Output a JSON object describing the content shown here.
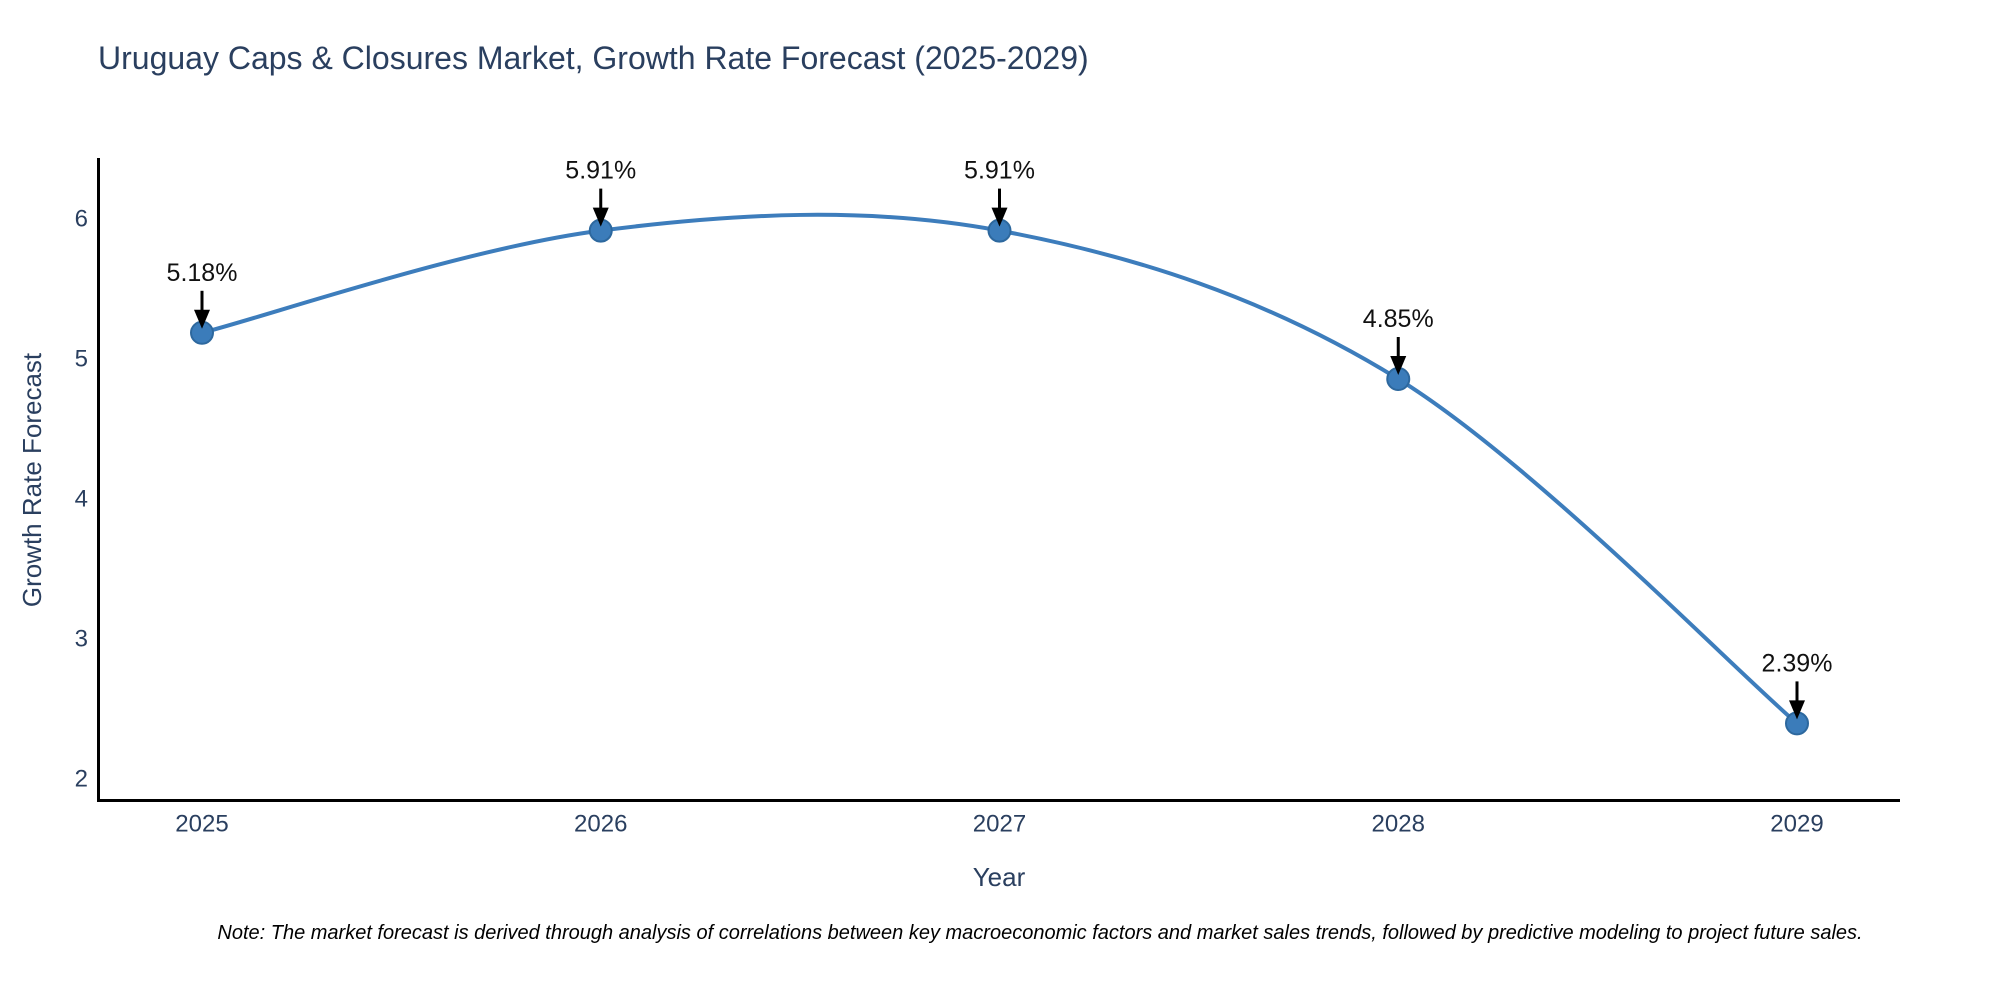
{
  "chart_data": {
    "type": "line",
    "title": "Uruguay Caps & Closures Market, Growth Rate Forecast (2025-2029)",
    "xlabel": "Year",
    "ylabel": "Growth Rate Forecast",
    "x": [
      2025,
      2026,
      2027,
      2028,
      2029
    ],
    "series": [
      {
        "name": "Growth Rate Forecast",
        "values": [
          5.18,
          5.91,
          5.91,
          4.85,
          2.39
        ]
      }
    ],
    "point_labels": [
      "5.18%",
      "5.91%",
      "5.91%",
      "4.85%",
      "2.39%"
    ],
    "yticks": [
      2,
      3,
      4,
      5,
      6
    ],
    "xticks": [
      2025,
      2026,
      2027,
      2028,
      2029
    ],
    "ylim": [
      1.84,
      6.42
    ],
    "xlim": [
      2024.74,
      2029.26
    ],
    "grid": false,
    "legend_position": "none",
    "line_shape": "spline",
    "marker_style": "circle",
    "annotation_arrows": "black-down-arrows",
    "colors": {
      "line": "#3d7dbc",
      "marker": "#3b7cba",
      "marker_edge": "#2d689e",
      "axis": "#000000",
      "title_text": "#2a3f5f",
      "tick_text": "#2a3f5f",
      "annotation_text": "#111111",
      "arrow": "#000000"
    },
    "note": "Note: The market forecast is derived through analysis of correlations between key macroeconomic factors and market sales trends, followed by predictive modeling to project future sales."
  }
}
